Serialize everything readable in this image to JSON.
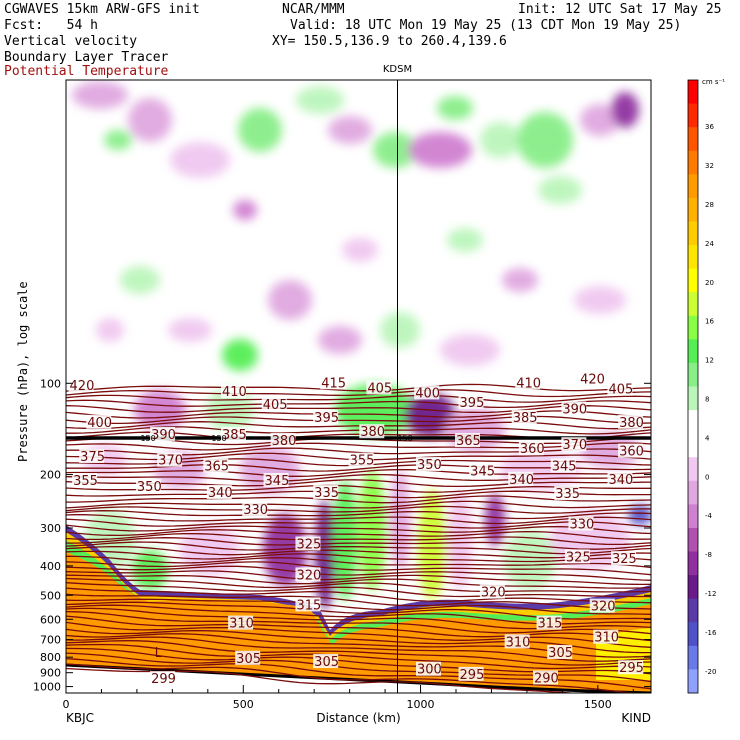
{
  "header": {
    "line1_left": "CGWAVES 15km ARW-GFS init",
    "line1_mid": "NCAR/MMM",
    "line1_right": "Init: 12 UTC Sat 17 May 25",
    "line2_left": "Fcst:   54 h",
    "line2_right": "Valid: 18 UTC Mon 19 May 25 (13 CDT Mon 19 May 25)",
    "line3_left": "Vertical velocity",
    "line3_right": "XY= 150.5,136.9 to 260.4,139.6",
    "line4_left": "Boundary Layer Tracer",
    "line5_left": "Potential Temperature"
  },
  "chart_data": {
    "type": "cross-section",
    "station_marker": "KDSM",
    "station_marker_x_km": 935,
    "xlabel": "Distance (km)",
    "ylabel": "Pressure (hPa), log scale",
    "xlim": [
      0,
      1650
    ],
    "ylim": [
      1050,
      10
    ],
    "y_scale": "log",
    "x_ticks": [
      0,
      500,
      1000,
      1500
    ],
    "x_tick_labels": [
      "0",
      "500",
      "1000",
      "1500"
    ],
    "y_ticks": [
      100,
      200,
      300,
      400,
      500,
      600,
      700,
      800,
      900,
      1000
    ],
    "y_tick_labels": [
      "100",
      "200",
      "300",
      "400",
      "500",
      "600",
      "700",
      "800",
      "900",
      "1000"
    ],
    "x_endpoints": [
      "KBJC",
      "KIND"
    ],
    "colorbar": {
      "units": "cm s⁻¹",
      "labels": [
        "36",
        "32",
        "28",
        "24",
        "20",
        "16",
        "12",
        "8",
        "4",
        "0",
        "-4",
        "-8",
        "-12",
        "-16",
        "-20"
      ],
      "colors": [
        "#ff0000",
        "#ff2a00",
        "#ff5500",
        "#ff7a00",
        "#ff9a00",
        "#ffb000",
        "#ffcc00",
        "#ffe600",
        "#ffff00",
        "#ccff33",
        "#88ff44",
        "#55ee55",
        "#88ee88",
        "#bbf5bb",
        "#ffffff",
        "#ffffff",
        "#f0c8f0",
        "#e0a8e0",
        "#d080d0",
        "#b050b0",
        "#9030a0",
        "#6a1a8a",
        "#5a3aa8",
        "#5050c8",
        "#6a78e8",
        "#8fa0ff"
      ]
    },
    "isentrope_labels": [
      {
        "text": "420",
        "x_km": 10,
        "p": 102
      },
      {
        "text": "410",
        "x_km": 440,
        "p": 107
      },
      {
        "text": "415",
        "x_km": 720,
        "p": 100
      },
      {
        "text": "405",
        "x_km": 850,
        "p": 104
      },
      {
        "text": "400",
        "x_km": 985,
        "p": 108
      },
      {
        "text": "410",
        "x_km": 1270,
        "p": 100
      },
      {
        "text": "420",
        "x_km": 1450,
        "p": 97
      },
      {
        "text": "405",
        "x_km": 1530,
        "p": 105
      },
      {
        "text": "400",
        "x_km": 60,
        "p": 135
      },
      {
        "text": "390",
        "x_km": 240,
        "p": 148
      },
      {
        "text": "385",
        "x_km": 440,
        "p": 148
      },
      {
        "text": "405",
        "x_km": 555,
        "p": 118
      },
      {
        "text": "395",
        "x_km": 700,
        "p": 130
      },
      {
        "text": "380",
        "x_km": 830,
        "p": 145
      },
      {
        "text": "395",
        "x_km": 1110,
        "p": 116
      },
      {
        "text": "385",
        "x_km": 1260,
        "p": 130
      },
      {
        "text": "390",
        "x_km": 1400,
        "p": 122
      },
      {
        "text": "380",
        "x_km": 1560,
        "p": 135
      },
      {
        "text": "375",
        "x_km": 40,
        "p": 175
      },
      {
        "text": "370",
        "x_km": 260,
        "p": 180
      },
      {
        "text": "365",
        "x_km": 390,
        "p": 188
      },
      {
        "text": "380",
        "x_km": 580,
        "p": 155
      },
      {
        "text": "355",
        "x_km": 800,
        "p": 180
      },
      {
        "text": "350",
        "x_km": 990,
        "p": 186
      },
      {
        "text": "365",
        "x_km": 1100,
        "p": 155
      },
      {
        "text": "360",
        "x_km": 1280,
        "p": 165
      },
      {
        "text": "370",
        "x_km": 1400,
        "p": 160
      },
      {
        "text": "345",
        "x_km": 1370,
        "p": 188
      },
      {
        "text": "360",
        "x_km": 1560,
        "p": 168
      },
      {
        "text": "355",
        "x_km": 20,
        "p": 210
      },
      {
        "text": "350",
        "x_km": 200,
        "p": 220
      },
      {
        "text": "340",
        "x_km": 400,
        "p": 230
      },
      {
        "text": "345",
        "x_km": 560,
        "p": 210
      },
      {
        "text": "335",
        "x_km": 700,
        "p": 230
      },
      {
        "text": "345",
        "x_km": 1140,
        "p": 195
      },
      {
        "text": "340",
        "x_km": 1250,
        "p": 208
      },
      {
        "text": "335",
        "x_km": 1380,
        "p": 232
      },
      {
        "text": "340",
        "x_km": 1530,
        "p": 208
      },
      {
        "text": "330",
        "x_km": 500,
        "p": 262
      },
      {
        "text": "330",
        "x_km": 1420,
        "p": 292
      },
      {
        "text": "325",
        "x_km": 650,
        "p": 340
      },
      {
        "text": "325",
        "x_km": 1410,
        "p": 375
      },
      {
        "text": "325",
        "x_km": 1540,
        "p": 380
      },
      {
        "text": "320",
        "x_km": 650,
        "p": 430
      },
      {
        "text": "320",
        "x_km": 1170,
        "p": 490
      },
      {
        "text": "320",
        "x_km": 1480,
        "p": 545
      },
      {
        "text": "315",
        "x_km": 650,
        "p": 540
      },
      {
        "text": "315",
        "x_km": 1330,
        "p": 620
      },
      {
        "text": "310",
        "x_km": 460,
        "p": 620
      },
      {
        "text": "310",
        "x_km": 1240,
        "p": 715
      },
      {
        "text": "310",
        "x_km": 1490,
        "p": 690
      },
      {
        "text": "305",
        "x_km": 480,
        "p": 810
      },
      {
        "text": "305",
        "x_km": 700,
        "p": 830
      },
      {
        "text": "305",
        "x_km": 1360,
        "p": 775
      },
      {
        "text": "300",
        "x_km": 990,
        "p": 880
      },
      {
        "text": "295",
        "x_km": 1110,
        "p": 915
      },
      {
        "text": "295",
        "x_km": 1560,
        "p": 870
      },
      {
        "text": "290",
        "x_km": 1320,
        "p": 940
      },
      {
        "text": "299",
        "x_km": 240,
        "p": 945
      }
    ],
    "low_marker": {
      "text": "L",
      "x_km": 250,
      "p": 800
    },
    "tracer_marks": [
      {
        "text": "150",
        "x_km": 210,
        "p": 155
      },
      {
        "text": "150",
        "x_km": 410,
        "p": 155
      },
      {
        "text": "150",
        "x_km": 935,
        "p": 155
      }
    ]
  }
}
